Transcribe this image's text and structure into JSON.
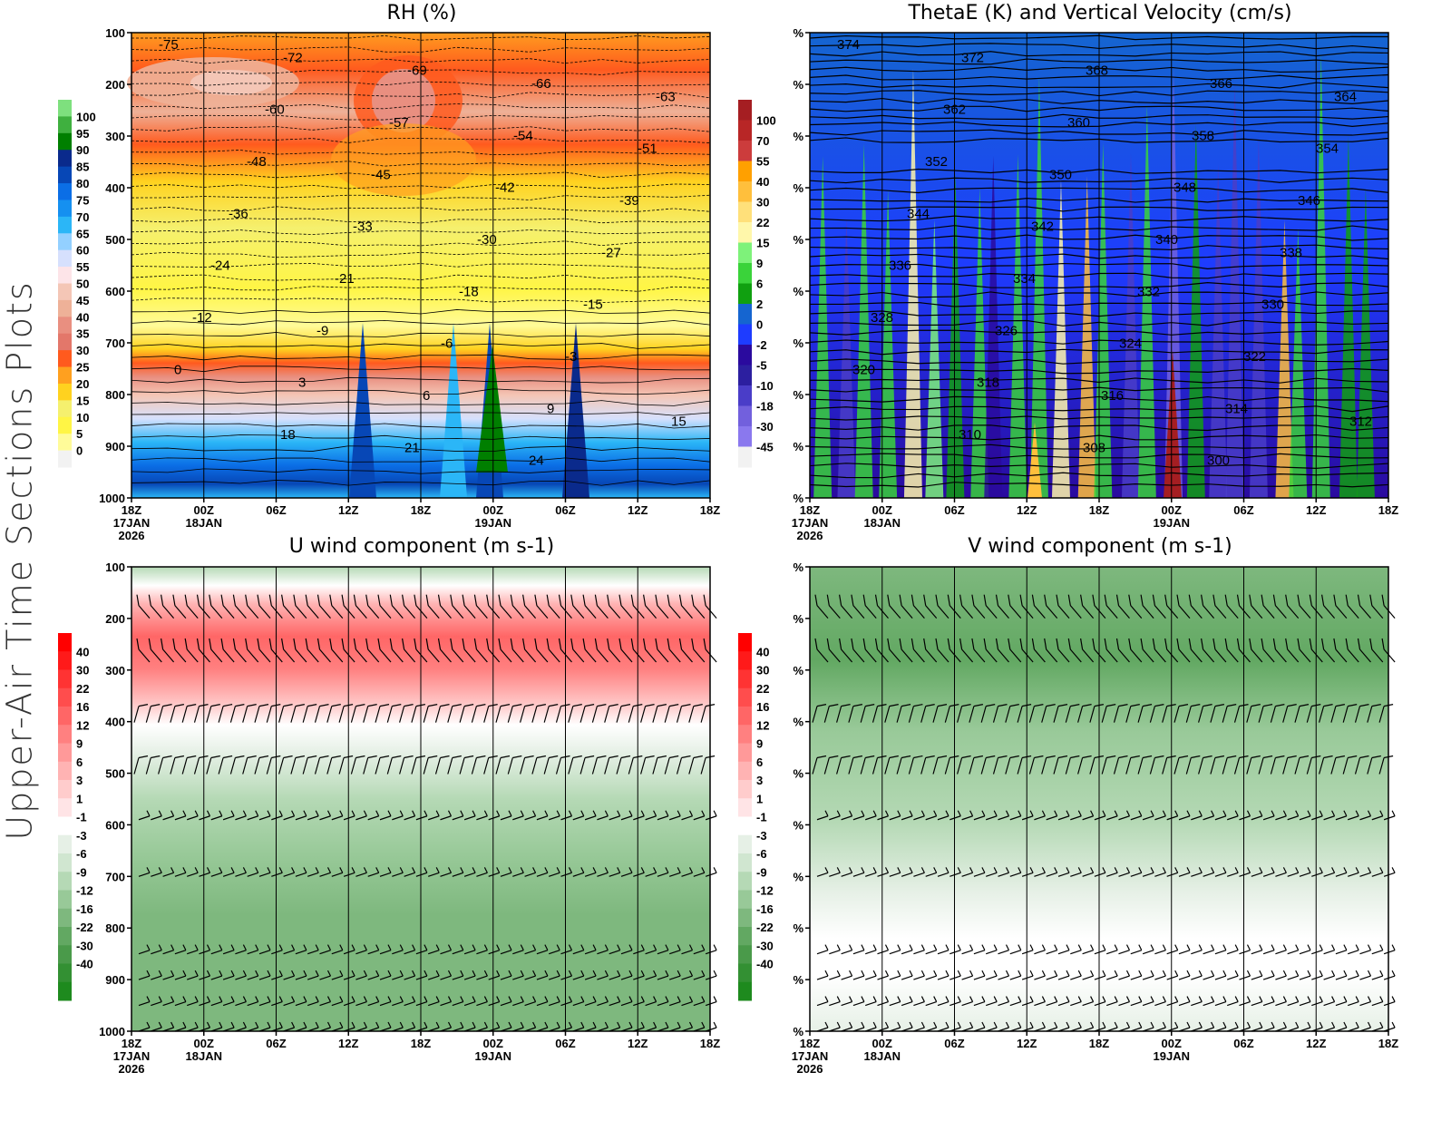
{
  "page": {
    "side_title": "Upper-Air Time Sections Plots"
  },
  "chart_data": [
    {
      "id": "rh",
      "type": "heatmap",
      "title": "RH (%)",
      "y_axis": {
        "label": "",
        "ticks": [
          "100",
          "200",
          "300",
          "400",
          "500",
          "600",
          "700",
          "800",
          "900",
          "1000"
        ],
        "range": [
          100,
          1000
        ],
        "inverted": true
      },
      "x_axis": {
        "ticks": [
          "18Z",
          "00Z",
          "06Z",
          "12Z",
          "18Z",
          "00Z",
          "06Z",
          "12Z",
          "18Z"
        ],
        "date_labels": [
          "17JAN",
          "18JAN",
          "",
          "",
          "",
          "19JAN",
          "",
          "",
          ""
        ],
        "year_label": "2026"
      },
      "colorbar": {
        "levels": [
          "100",
          "95",
          "90",
          "85",
          "80",
          "75",
          "70",
          "65",
          "60",
          "55",
          "50",
          "45",
          "40",
          "35",
          "30",
          "25",
          "20",
          "15",
          "10",
          "5",
          "0"
        ],
        "colors": [
          "#7ee07e",
          "#3fb03f",
          "#007f00",
          "#0a2a8c",
          "#0747b6",
          "#0b6ee6",
          "#1590f0",
          "#2bb6f7",
          "#93d0ff",
          "#d6e0fd",
          "#fde4e8",
          "#f4c6b6",
          "#eeb198",
          "#e98f80",
          "#e3776a",
          "#ff5a1e",
          "#ffa01f",
          "#ffd21f",
          "#f5f06e",
          "#fff545",
          "#fffb99",
          "#f2f2f2"
        ]
      },
      "contour_labels_temperature_c": [
        "-75",
        "-72",
        "-69",
        "-66",
        "-63",
        "-60",
        "-57",
        "-54",
        "-51",
        "-48",
        "-45",
        "-42",
        "-39",
        "-36",
        "-33",
        "-30",
        "-27",
        "-24",
        "-21",
        "-18",
        "-15",
        "-12",
        "-9",
        "-6",
        "-3",
        "0",
        "3",
        "6",
        "9",
        "15",
        "18",
        "21",
        "24"
      ]
    },
    {
      "id": "thetae",
      "type": "heatmap",
      "title": "ThetaE (K) and Vertical Velocity (cm/s)",
      "y_axis": {
        "ticks": [
          "%",
          "%",
          "%",
          "%",
          "%",
          "%",
          "%",
          "%",
          "%",
          "%"
        ]
      },
      "x_axis": {
        "ticks": [
          "18Z",
          "00Z",
          "06Z",
          "12Z",
          "18Z",
          "00Z",
          "06Z",
          "12Z",
          "18Z"
        ],
        "date_labels": [
          "17JAN",
          "18JAN",
          "",
          "",
          "",
          "19JAN",
          "",
          "",
          ""
        ],
        "year_label": "2026"
      },
      "colorbar": {
        "levels": [
          "100",
          "70",
          "55",
          "40",
          "30",
          "22",
          "15",
          "9",
          "6",
          "2",
          "0",
          "-2",
          "-5",
          "-10",
          "-18",
          "-30",
          "-45"
        ],
        "colors": [
          "#a51e22",
          "#b82626",
          "#cc3c3c",
          "#ffa000",
          "#ffbf3c",
          "#ffe07a",
          "#fff7aa",
          "#7ef27a",
          "#3ad33a",
          "#10a010",
          "#1565d0",
          "#1e3cff",
          "#2a0a9e",
          "#2c1fa0",
          "#4a3dc8",
          "#7260dd",
          "#8a78ee",
          "#f2f2f2"
        ]
      },
      "contour_labels_thetae_k": [
        "374",
        "372",
        "368",
        "366",
        "364",
        "362",
        "360",
        "358",
        "354",
        "352",
        "350",
        "348",
        "346",
        "344",
        "342",
        "340",
        "338",
        "336",
        "334",
        "332",
        "330",
        "328",
        "326",
        "324",
        "322",
        "320",
        "318",
        "316",
        "314",
        "312",
        "310",
        "308",
        "300"
      ]
    },
    {
      "id": "uwind",
      "type": "heatmap",
      "title": "U wind component (m s-1)",
      "y_axis": {
        "ticks": [
          "100",
          "200",
          "300",
          "400",
          "500",
          "600",
          "700",
          "800",
          "900",
          "1000"
        ],
        "range": [
          100,
          1000
        ],
        "inverted": true
      },
      "x_axis": {
        "ticks": [
          "18Z",
          "00Z",
          "06Z",
          "12Z",
          "18Z",
          "00Z",
          "06Z",
          "12Z",
          "18Z"
        ],
        "date_labels": [
          "17JAN",
          "18JAN",
          "",
          "",
          "",
          "19JAN",
          "",
          "",
          ""
        ],
        "year_label": "2026"
      },
      "colorbar": {
        "levels": [
          "40",
          "30",
          "22",
          "16",
          "12",
          "9",
          "6",
          "3",
          "1",
          "-1",
          "-3",
          "-6",
          "-9",
          "-12",
          "-16",
          "-22",
          "-30",
          "-40"
        ],
        "colors": [
          "#ff0000",
          "#ff1a1a",
          "#ff3333",
          "#ff4d4d",
          "#ff6666",
          "#ff8080",
          "#ff9999",
          "#ffb3b3",
          "#ffcccc",
          "#ffe4e6",
          "#ffffff",
          "#e6f0e6",
          "#d0e6d0",
          "#b5d9b5",
          "#98c998",
          "#7eb87e",
          "#62a862",
          "#4a9a4a",
          "#339033",
          "#1e8a1e"
        ]
      },
      "barb_levels_hpa": [
        175,
        260,
        370,
        470,
        590,
        700,
        850,
        900,
        950,
        1000
      ]
    },
    {
      "id": "vwind",
      "type": "heatmap",
      "title": "V wind component (m s-1)",
      "y_axis": {
        "ticks": [
          "%",
          "%",
          "%",
          "%",
          "%",
          "%",
          "%",
          "%",
          "%",
          "%"
        ]
      },
      "x_axis": {
        "ticks": [
          "18Z",
          "00Z",
          "06Z",
          "12Z",
          "18Z",
          "00Z",
          "06Z",
          "12Z",
          "18Z"
        ],
        "date_labels": [
          "17JAN",
          "18JAN",
          "",
          "",
          "",
          "19JAN",
          "",
          "",
          ""
        ],
        "year_label": "2026"
      },
      "colorbar": {
        "levels": [
          "40",
          "30",
          "22",
          "16",
          "12",
          "9",
          "6",
          "3",
          "1",
          "-1",
          "-3",
          "-6",
          "-9",
          "-12",
          "-16",
          "-22",
          "-30",
          "-40"
        ],
        "colors": [
          "#ff0000",
          "#ff1a1a",
          "#ff3333",
          "#ff4d4d",
          "#ff6666",
          "#ff8080",
          "#ff9999",
          "#ffb3b3",
          "#ffcccc",
          "#ffe4e6",
          "#ffffff",
          "#e6f0e6",
          "#d0e6d0",
          "#b5d9b5",
          "#98c998",
          "#7eb87e",
          "#62a862",
          "#4a9a4a",
          "#339033",
          "#1e8a1e"
        ]
      },
      "barb_levels_hpa": [
        175,
        260,
        370,
        470,
        590,
        700,
        850,
        900,
        950,
        1000
      ]
    }
  ]
}
